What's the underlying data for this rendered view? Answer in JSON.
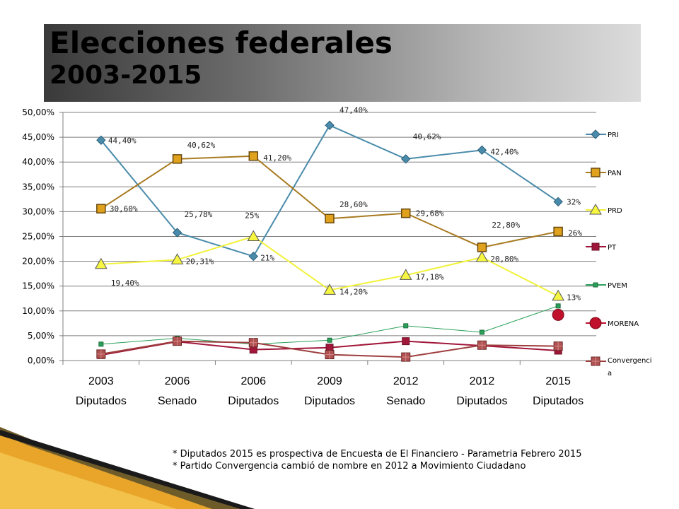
{
  "title": {
    "line1": "Elecciones federales",
    "line2": "2003-2015"
  },
  "footnotes": [
    "* Diputados 2015 es prospectiva  de Encuesta de El Financiero - Parametria Febrero 2015",
    "* Partido Convergencia cambió de nombre en  2012 a Movimiento Ciudadano"
  ],
  "chart_data": {
    "type": "line",
    "title": "",
    "xlabel": "",
    "ylabel": "",
    "ylim": [
      0,
      50
    ],
    "yticks": [
      "0,00%",
      "5,00%",
      "10,00%",
      "15,00%",
      "20,00%",
      "25,00%",
      "30,00%",
      "35,00%",
      "40,00%",
      "45,00%",
      "50,00%"
    ],
    "grid": true,
    "legend_position": "right",
    "categories": [
      {
        "year": "2003",
        "label": "Diputados"
      },
      {
        "year": "2006",
        "label": "Senado"
      },
      {
        "year": "2006",
        "label": "Diputados"
      },
      {
        "year": "2009",
        "label": "Diputados"
      },
      {
        "year": "2012",
        "label": "Senado"
      },
      {
        "year": "2012",
        "label": "Diputados"
      },
      {
        "year": "2015",
        "label": "Diputados"
      }
    ],
    "series": [
      {
        "name": "PRI",
        "color": "#4a8bab",
        "marker": "diamond",
        "values": [
          44.4,
          25.78,
          21,
          47.4,
          40.62,
          42.4,
          32
        ],
        "labels": [
          "44,40%",
          "25,78%",
          "21%",
          "47,40%",
          "40,62%",
          "42,40%",
          "32%"
        ]
      },
      {
        "name": "PAN",
        "color": "#b8862b",
        "marker": "square",
        "values": [
          30.6,
          40.62,
          41.2,
          28.6,
          29.68,
          22.8,
          26
        ],
        "labels": [
          "30,60%",
          "40,62%",
          "41,20%",
          "28,60%",
          "29,68%",
          "22,80%",
          "26%"
        ]
      },
      {
        "name": "PRD",
        "color": "#f5f542",
        "marker": "triangle",
        "values": [
          19.4,
          20.31,
          25,
          14.2,
          17.18,
          20.8,
          13
        ],
        "labels": [
          "19,40%",
          "20,31%",
          "25%",
          "14,20%",
          "17,18%",
          "20,80%",
          "13%"
        ]
      },
      {
        "name": "PT",
        "color": "#a0173a",
        "marker": "square-small",
        "values": [
          1.1,
          3.8,
          2.2,
          2.6,
          3.9,
          3.0,
          2.0
        ],
        "labels": []
      },
      {
        "name": "PVEM",
        "color": "#2aa05a",
        "marker": "small-square",
        "values": [
          3.3,
          4.5,
          3.3,
          4.1,
          7.0,
          5.7,
          11.0
        ],
        "labels": []
      },
      {
        "name": "MORENA",
        "color": "#c0102c",
        "marker": "circle",
        "values": [
          null,
          null,
          null,
          null,
          null,
          null,
          9.2
        ],
        "labels": []
      },
      {
        "name": "Convergencia",
        "color": "#9e3d3d",
        "marker": "square-cross",
        "values": [
          1.3,
          3.9,
          3.6,
          1.2,
          0.7,
          3.1,
          2.9
        ],
        "labels": []
      }
    ]
  }
}
